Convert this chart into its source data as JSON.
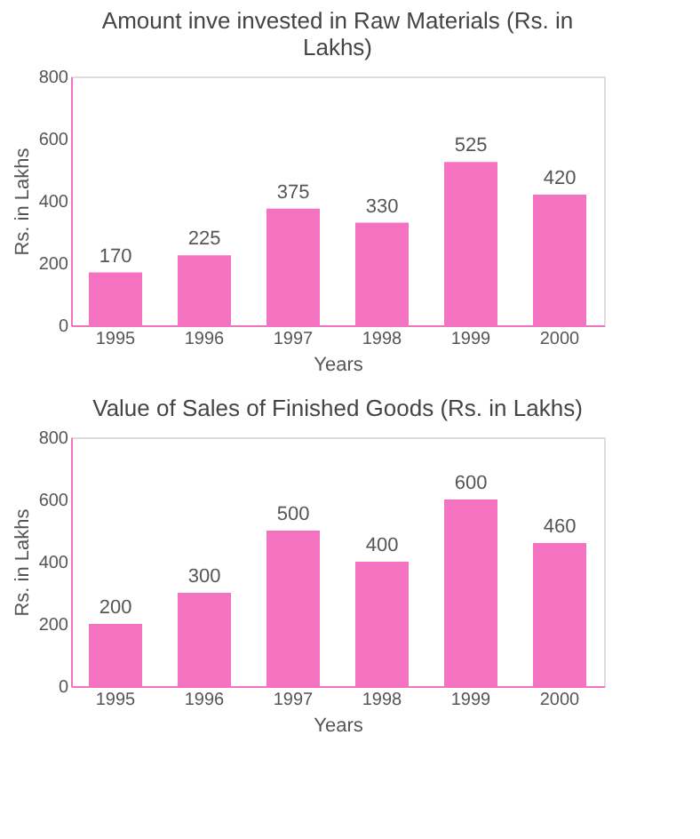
{
  "chart_data": [
    {
      "type": "bar",
      "title": "Amount inve invested in Raw Materials (Rs. in Lakhs)",
      "xlabel": "Years",
      "ylabel": "Rs. in Lakhs",
      "categories": [
        "1995",
        "1996",
        "1997",
        "1998",
        "1999",
        "2000"
      ],
      "values": [
        170,
        225,
        375,
        330,
        525,
        420
      ],
      "color": "#f472c0",
      "ylim": [
        0,
        800
      ],
      "yticks": [
        0,
        200,
        400,
        600,
        800
      ],
      "grid": false,
      "data_labels": true
    },
    {
      "type": "bar",
      "title": "Value of Sales of Finished Goods (Rs. in Lakhs)",
      "xlabel": "Years",
      "ylabel": "Rs. in Lakhs",
      "categories": [
        "1995",
        "1996",
        "1997",
        "1998",
        "1999",
        "2000"
      ],
      "values": [
        200,
        300,
        500,
        400,
        600,
        460
      ],
      "color": "#f472c0",
      "ylim": [
        0,
        800
      ],
      "yticks": [
        0,
        200,
        400,
        600,
        800
      ],
      "grid": false,
      "data_labels": true
    }
  ]
}
